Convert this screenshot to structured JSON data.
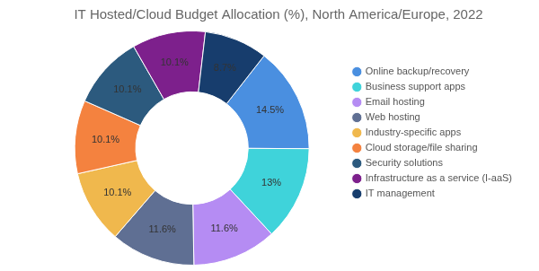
{
  "chart_data": {
    "type": "doughnut",
    "title": "IT Hosted/Cloud Budget Allocation (%), North America/Europe, 2022",
    "categories": [
      "Online backup/recovery",
      "Business support apps",
      "Email hosting",
      "Web hosting",
      "Industry-specific apps",
      "Cloud storage/file sharing",
      "Security solutions",
      "Infrastructure as a service (I-aaS)",
      "IT management"
    ],
    "values": [
      14.5,
      13,
      11.6,
      11.6,
      10.1,
      10.1,
      10.1,
      10.1,
      8.7
    ],
    "value_labels": [
      "14.5%",
      "13%",
      "11.6%",
      "11.6%",
      "10.1%",
      "10.1%",
      "10.1%",
      "10.1%",
      "8.7%"
    ],
    "colors": [
      "#4a8fe0",
      "#3fd3da",
      "#b58cf3",
      "#5f6f93",
      "#f0b84d",
      "#f4823f",
      "#2c5a7e",
      "#7d208c",
      "#173d6d"
    ],
    "data_labels": true,
    "legend": "right"
  }
}
